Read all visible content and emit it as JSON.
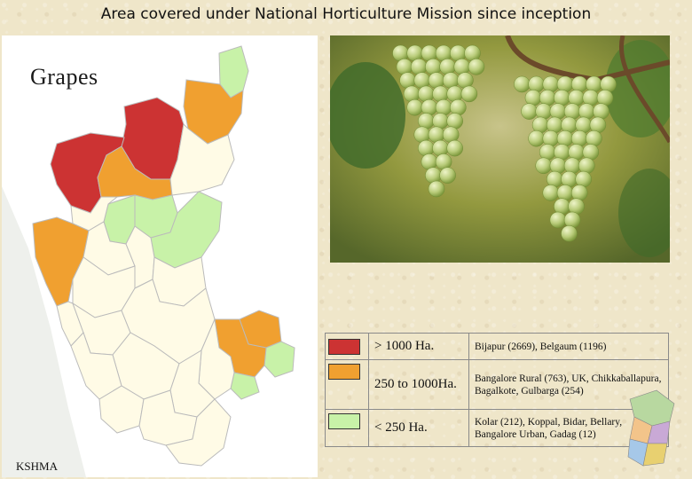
{
  "page": {
    "title": "Area covered under National Horticulture Mission since inception",
    "crop_label": "Grapes",
    "footer_label": "KSHMA"
  },
  "colors": {
    "high": "#cc3333",
    "medium": "#f0a030",
    "low": "#c8f2a8",
    "none": "#fffbe6",
    "sea": "#eef0ec"
  },
  "legend": [
    {
      "range": "> 1000 Ha.",
      "color": "#cc3333",
      "districts": "Bijapur (2669), Belgaum (1196)"
    },
    {
      "range": "250 to 1000Ha.",
      "color": "#f0a030",
      "districts": "Bangalore Rural (763),  UK, Chikkaballapura, Bagalkote, Gulbarga (254)"
    },
    {
      "range": "< 250 Ha.",
      "color": "#c8f2a8",
      "districts": "Kolar (212), Koppal, Bidar,  Bellary, Bangalore Urban, Gadag (12)"
    }
  ],
  "photo": {
    "subject": "green grape clusters on vine"
  }
}
